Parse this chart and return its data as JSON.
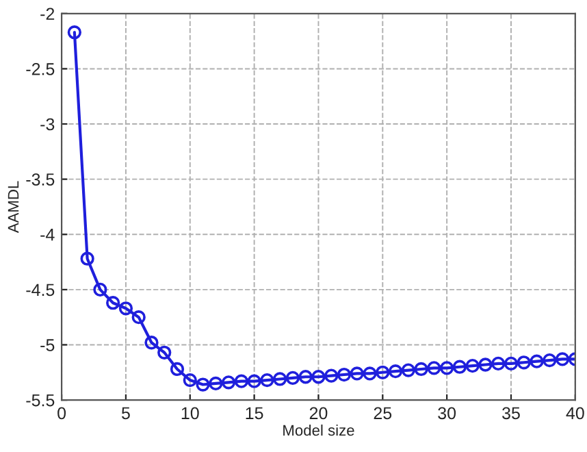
{
  "chart_data": {
    "type": "line",
    "xlabel": "Model size",
    "ylabel": "AAMDL",
    "x": [
      1,
      2,
      3,
      4,
      5,
      6,
      7,
      8,
      9,
      10,
      11,
      12,
      13,
      14,
      15,
      16,
      17,
      18,
      19,
      20,
      21,
      22,
      23,
      24,
      25,
      26,
      27,
      28,
      29,
      30,
      31,
      32,
      33,
      34,
      35,
      36,
      37,
      38,
      39,
      40
    ],
    "series": [
      {
        "color": "#1f1fdc",
        "values": [
          -2.17,
          -4.22,
          -4.5,
          -4.62,
          -4.67,
          -4.75,
          -4.98,
          -5.07,
          -5.22,
          -5.32,
          -5.36,
          -5.35,
          -5.34,
          -5.33,
          -5.33,
          -5.32,
          -5.31,
          -5.3,
          -5.29,
          -5.29,
          -5.28,
          -5.27,
          -5.26,
          -5.26,
          -5.25,
          -5.24,
          -5.23,
          -5.22,
          -5.21,
          -5.21,
          -5.2,
          -5.19,
          -5.18,
          -5.17,
          -5.17,
          -5.16,
          -5.15,
          -5.14,
          -5.13,
          -5.13
        ]
      }
    ],
    "xlim": [
      0,
      40
    ],
    "xticks": [
      0,
      5,
      10,
      15,
      20,
      25,
      30,
      35,
      40
    ],
    "ylim": [
      -5.5,
      -2
    ],
    "yticks": [
      -5.5,
      -5,
      -4.5,
      -4,
      -3.5,
      -3,
      -2.5,
      -2
    ],
    "grid": true,
    "marker": "circle",
    "line_style": "solid"
  }
}
